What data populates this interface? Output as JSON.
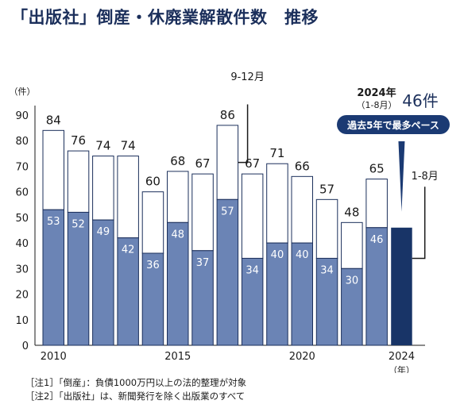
{
  "title": "「出版社」倒産・休廃業解散件数　推移",
  "chart_data": {
    "type": "bar",
    "categories": [
      "2010",
      "2011",
      "2012",
      "2013",
      "2014",
      "2015",
      "2016",
      "2017",
      "2018",
      "2019",
      "2020",
      "2021",
      "2022",
      "2023",
      "2024"
    ],
    "series": [
      {
        "name": "1-8月",
        "values": [
          53,
          52,
          49,
          42,
          36,
          48,
          37,
          57,
          34,
          40,
          40,
          34,
          30,
          46,
          46
        ]
      },
      {
        "name": "9-12月",
        "values": [
          31,
          24,
          25,
          32,
          24,
          20,
          30,
          29,
          33,
          31,
          26,
          23,
          18,
          19,
          null
        ]
      }
    ],
    "totals": [
      84,
      76,
      74,
      74,
      60,
      68,
      67,
      86,
      67,
      71,
      66,
      57,
      48,
      65,
      null
    ],
    "y_unit_label": "（件）",
    "x_unit_label": "（年）",
    "x_tick_labels": [
      "2010",
      "2015",
      "2020",
      "2024"
    ],
    "y_ticks": [
      0,
      10,
      20,
      30,
      40,
      50,
      60,
      70,
      80,
      90
    ],
    "ylim": [
      0,
      90
    ],
    "colors": {
      "jan_aug": "#6b84b5",
      "sep_dec": "#ffffff",
      "current_year": "#183467",
      "badge": "#1b3a73"
    },
    "annotations": {
      "sep_dec_label": "9-12月",
      "jan_aug_label": "1-8月",
      "current_title": "2024年",
      "current_period": "（1-8月）",
      "current_value": "46件",
      "badge": "過去5年で最多ペース"
    }
  },
  "notes": [
    "［注1］「倒産」：負債1000万円以上の法的整理が対象",
    "［注2］「出版社」は、新聞発行を除く出版業のすべて"
  ]
}
